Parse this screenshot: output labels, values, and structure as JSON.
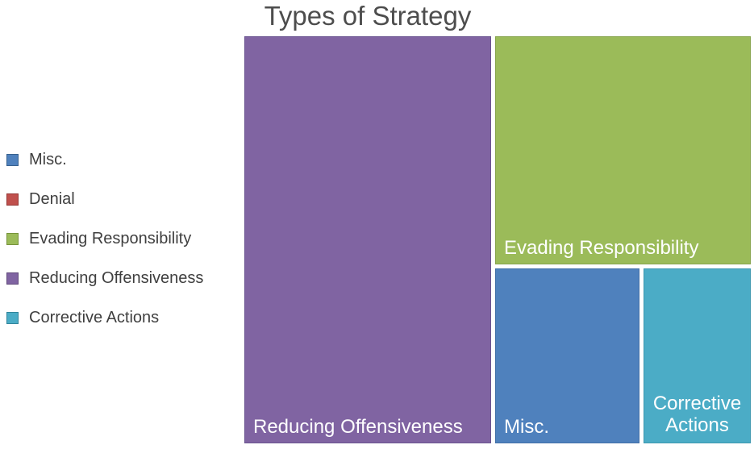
{
  "title": "Types of Strategy",
  "legend": {
    "position": "left",
    "items": [
      {
        "label": "Misc.",
        "color": "#4f81bd",
        "border": "#38618e"
      },
      {
        "label": "Denial",
        "color": "#c0504d",
        "border": "#953735"
      },
      {
        "label": "Evading Responsibility",
        "color": "#9bbb59",
        "border": "#77933c"
      },
      {
        "label": "Reducing Offensiveness",
        "color": "#8064a2",
        "border": "#604a7b"
      },
      {
        "label": "Corrective Actions",
        "color": "#4bacc6",
        "border": "#31859c"
      }
    ]
  },
  "chart_data": {
    "type": "treemap",
    "title": "Types of Strategy",
    "legend_position": "left",
    "categories": [
      "Misc.",
      "Denial",
      "Evading Responsibility",
      "Reducing Offensiveness",
      "Corrective Actions"
    ],
    "values_area_pct": [
      12.5,
      0,
      28.9,
      49.3,
      9.3
    ],
    "value_labels_shown": false,
    "note": "No numeric labels shown; values are area percentages estimated from tile sizes. 'Denial' appears in the legend but has no visible tile.",
    "tiles": [
      {
        "label": "Reducing Offensiveness",
        "color": "#8064a2",
        "border": "#6a5490",
        "area_pct": 49.3,
        "label_position": "bottom-left"
      },
      {
        "label": "Evading Responsibility",
        "color": "#9bbb59",
        "border": "#86a44c",
        "area_pct": 28.9,
        "label_position": "bottom-left"
      },
      {
        "label": "Misc.",
        "color": "#4f81bd",
        "border": "#416fa6",
        "area_pct": 12.5,
        "label_position": "bottom-left"
      },
      {
        "label": "Corrective Actions",
        "color": "#4bacc6",
        "border": "#3d97af",
        "area_pct": 9.3,
        "label_position": "bottom-center"
      }
    ]
  }
}
